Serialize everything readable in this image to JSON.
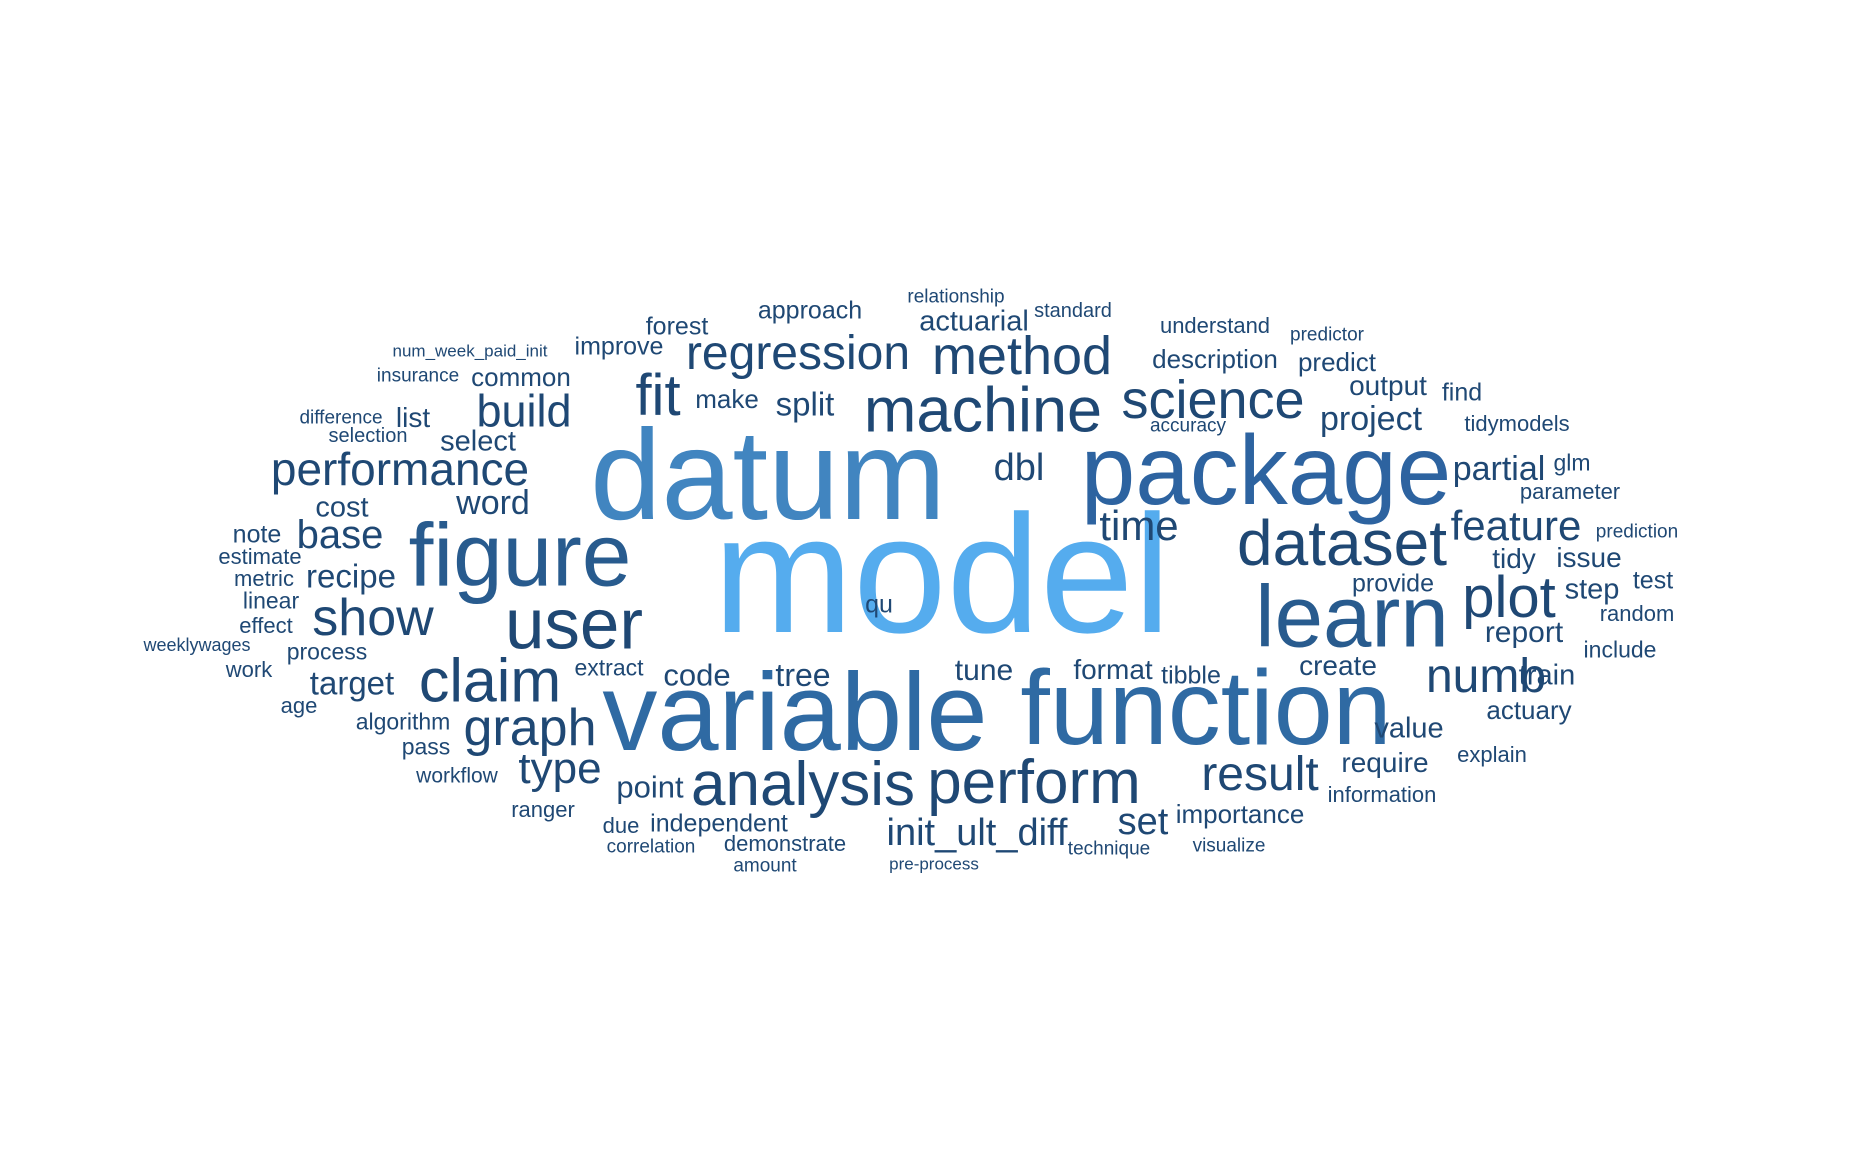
{
  "words": [
    {
      "text": "model",
      "weight": 100,
      "color": "#55acee"
    },
    {
      "text": "datum",
      "weight": 75,
      "color": "#4185c0"
    },
    {
      "text": "variable",
      "weight": 64,
      "color": "#2f6aa3"
    },
    {
      "text": "function",
      "weight": 63,
      "color": "#2f6aa3"
    },
    {
      "text": "package",
      "weight": 58,
      "color": "#2d63a0"
    },
    {
      "text": "figure",
      "weight": 52,
      "color": "#285b8e"
    },
    {
      "text": "learn",
      "weight": 52,
      "color": "#285b8e"
    },
    {
      "text": "user",
      "weight": 43,
      "color": "#1f4874"
    },
    {
      "text": "dataset",
      "weight": 39,
      "color": "#1f4874"
    },
    {
      "text": "machine",
      "weight": 38,
      "color": "#1f4874"
    },
    {
      "text": "analysis",
      "weight": 37,
      "color": "#1f4874"
    },
    {
      "text": "perform",
      "weight": 37,
      "color": "#1f4874"
    },
    {
      "text": "claim",
      "weight": 37,
      "color": "#1f4874"
    },
    {
      "text": "plot",
      "weight": 35,
      "color": "#1f4874"
    },
    {
      "text": "fit",
      "weight": 35,
      "color": "#1f4874"
    },
    {
      "text": "science",
      "weight": 32,
      "color": "#1f4874"
    },
    {
      "text": "method",
      "weight": 32,
      "color": "#1f4874"
    },
    {
      "text": "show",
      "weight": 31,
      "color": "#1f4874"
    },
    {
      "text": "graph",
      "weight": 31,
      "color": "#1f4874"
    },
    {
      "text": "regression",
      "weight": 29,
      "color": "#1f4874"
    },
    {
      "text": "result",
      "weight": 29,
      "color": "#1f4874"
    },
    {
      "text": "numb",
      "weight": 29,
      "color": "#1f4874"
    },
    {
      "text": "performance",
      "weight": 28,
      "color": "#1f4874"
    },
    {
      "text": "build",
      "weight": 27,
      "color": "#1f4874"
    },
    {
      "text": "type",
      "weight": 27,
      "color": "#1f4874"
    },
    {
      "text": "feature",
      "weight": 26,
      "color": "#1f4874"
    },
    {
      "text": "time",
      "weight": 25,
      "color": "#1f4874"
    },
    {
      "text": "base",
      "weight": 24,
      "color": "#1f4874"
    },
    {
      "text": "init_ult_diff",
      "weight": 24,
      "color": "#1f4874"
    },
    {
      "text": "set",
      "weight": 23,
      "color": "#1f4874"
    },
    {
      "text": "dbl",
      "weight": 23,
      "color": "#1f4874"
    },
    {
      "text": "project",
      "weight": 22,
      "color": "#1f4874"
    },
    {
      "text": "word",
      "weight": 22,
      "color": "#1f4874"
    },
    {
      "text": "partial",
      "weight": 22,
      "color": "#1f4874"
    },
    {
      "text": "split",
      "weight": 21,
      "color": "#1f4874"
    },
    {
      "text": "target",
      "weight": 21,
      "color": "#1f4874"
    },
    {
      "text": "recipe",
      "weight": 21,
      "color": "#1f4874"
    },
    {
      "text": "tree",
      "weight": 21,
      "color": "#1f4874"
    },
    {
      "text": "code",
      "weight": 21,
      "color": "#1f4874"
    },
    {
      "text": "point",
      "weight": 21,
      "color": "#1f4874"
    },
    {
      "text": "tune",
      "weight": 20,
      "color": "#1f4874"
    },
    {
      "text": "report",
      "weight": 20,
      "color": "#1f4874"
    },
    {
      "text": "step",
      "weight": 20,
      "color": "#1f4874"
    },
    {
      "text": "train",
      "weight": 20,
      "color": "#1f4874"
    },
    {
      "text": "select",
      "weight": 20,
      "color": "#1f4874"
    },
    {
      "text": "cost",
      "weight": 19,
      "color": "#1f4874"
    },
    {
      "text": "actuarial",
      "weight": 19,
      "color": "#1f4874"
    },
    {
      "text": "value",
      "weight": 19,
      "color": "#1f4874"
    },
    {
      "text": "tidy",
      "weight": 19,
      "color": "#1f4874"
    },
    {
      "text": "issue",
      "weight": 19,
      "color": "#1f4874"
    },
    {
      "text": "output",
      "weight": 19,
      "color": "#1f4874"
    },
    {
      "text": "list",
      "weight": 19,
      "color": "#1f4874"
    },
    {
      "text": "format",
      "weight": 19,
      "color": "#1f4874"
    },
    {
      "text": "create",
      "weight": 19,
      "color": "#1f4874"
    },
    {
      "text": "require",
      "weight": 19,
      "color": "#1f4874"
    },
    {
      "text": "importance",
      "weight": 18,
      "color": "#1f4874"
    },
    {
      "text": "make",
      "weight": 18,
      "color": "#1f4874"
    },
    {
      "text": "common",
      "weight": 18,
      "color": "#1f4874"
    },
    {
      "text": "predict",
      "weight": 18,
      "color": "#1f4874"
    },
    {
      "text": "description",
      "weight": 18,
      "color": "#1f4874"
    },
    {
      "text": "actuary",
      "weight": 18,
      "color": "#1f4874"
    },
    {
      "text": "improve",
      "weight": 18,
      "color": "#1f4874"
    },
    {
      "text": "find",
      "weight": 18,
      "color": "#1f4874"
    },
    {
      "text": "forest",
      "weight": 18,
      "color": "#1f4874"
    },
    {
      "text": "approach",
      "weight": 18,
      "color": "#1f4874"
    },
    {
      "text": "provide",
      "weight": 18,
      "color": "#1f4874"
    },
    {
      "text": "test",
      "weight": 18,
      "color": "#1f4874"
    },
    {
      "text": "tibble",
      "weight": 18,
      "color": "#1f4874"
    },
    {
      "text": "independent",
      "weight": 18,
      "color": "#1f4874"
    },
    {
      "text": "note",
      "weight": 18,
      "color": "#1f4874"
    },
    {
      "text": "qu",
      "weight": 18,
      "color": "#1f4874"
    },
    {
      "text": "extract",
      "weight": 17,
      "color": "#1f4874"
    },
    {
      "text": "algorithm",
      "weight": 17,
      "color": "#1f4874"
    },
    {
      "text": "process",
      "weight": 17,
      "color": "#1f4874"
    },
    {
      "text": "pass",
      "weight": 17,
      "color": "#1f4874"
    },
    {
      "text": "demonstrate",
      "weight": 17,
      "color": "#1f4874"
    },
    {
      "text": "linear",
      "weight": 17,
      "color": "#1f4874"
    },
    {
      "text": "glm",
      "weight": 17,
      "color": "#1f4874"
    },
    {
      "text": "understand",
      "weight": 17,
      "color": "#1f4874"
    },
    {
      "text": "include",
      "weight": 17,
      "color": "#1f4874"
    },
    {
      "text": "tidymodels",
      "weight": 17,
      "color": "#1f4874"
    },
    {
      "text": "work",
      "weight": 17,
      "color": "#1f4874"
    },
    {
      "text": "age",
      "weight": 17,
      "color": "#1f4874"
    },
    {
      "text": "due",
      "weight": 17,
      "color": "#1f4874"
    },
    {
      "text": "ranger",
      "weight": 17,
      "color": "#1f4874"
    },
    {
      "text": "metric",
      "weight": 17,
      "color": "#1f4874"
    },
    {
      "text": "random",
      "weight": 17,
      "color": "#1f4874"
    },
    {
      "text": "effect",
      "weight": 17,
      "color": "#1f4874"
    },
    {
      "text": "estimate",
      "weight": 17,
      "color": "#1f4874"
    },
    {
      "text": "parameter",
      "weight": 17,
      "color": "#1f4874"
    },
    {
      "text": "explain",
      "weight": 17,
      "color": "#1f4874"
    },
    {
      "text": "information",
      "weight": 17,
      "color": "#1f4874"
    },
    {
      "text": "workflow",
      "weight": 16,
      "color": "#1f4874"
    },
    {
      "text": "selection",
      "weight": 16,
      "color": "#1f4874"
    },
    {
      "text": "standard",
      "weight": 16,
      "color": "#1f4874"
    },
    {
      "text": "amount",
      "weight": 16,
      "color": "#1f4874"
    },
    {
      "text": "technique",
      "weight": 16,
      "color": "#1f4874"
    },
    {
      "text": "correlation",
      "weight": 16,
      "color": "#1f4874"
    },
    {
      "text": "visualize",
      "weight": 16,
      "color": "#1f4874"
    },
    {
      "text": "insurance",
      "weight": 16,
      "color": "#1f4874"
    },
    {
      "text": "difference",
      "weight": 16,
      "color": "#1f4874"
    },
    {
      "text": "predictor",
      "weight": 16,
      "color": "#1f4874"
    },
    {
      "text": "prediction",
      "weight": 16,
      "color": "#1f4874"
    },
    {
      "text": "relationship",
      "weight": 16,
      "color": "#1f4874"
    },
    {
      "text": "accuracy",
      "weight": 16,
      "color": "#1f4874"
    },
    {
      "text": "weeklywages",
      "weight": 16,
      "color": "#1f4874"
    },
    {
      "text": "num_week_paid_init",
      "weight": 16,
      "color": "#1f4874"
    },
    {
      "text": "pre-process",
      "weight": 16,
      "color": "#1f4874"
    }
  ]
}
